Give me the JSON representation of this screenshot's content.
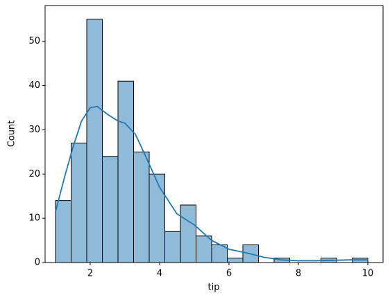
{
  "chart_data": {
    "type": "histogram",
    "bins": [
      1,
      1.45,
      1.9,
      2.35,
      2.8,
      3.25,
      3.7,
      4.15,
      4.6,
      5.05,
      5.5,
      5.95,
      6.4,
      6.85,
      7.3,
      7.75,
      8.2,
      8.65,
      9.1,
      9.55,
      10
    ],
    "values": [
      14,
      27,
      55,
      24,
      41,
      25,
      20,
      7,
      13,
      6,
      4,
      1,
      4,
      0,
      1,
      0,
      0,
      1,
      0,
      1
    ],
    "color": "#8fbbd9",
    "edgecolor": "#000000",
    "kde": {
      "color": "#1f77b4",
      "x": [
        1,
        1.25,
        1.5,
        1.75,
        2,
        2.2,
        2.5,
        2.8,
        3,
        3.3,
        3.6,
        4,
        4.5,
        5,
        5.5,
        6,
        6.5,
        7,
        7.5,
        8,
        8.5,
        9,
        9.5,
        10
      ],
      "values": [
        11.5,
        19,
        26,
        32,
        35,
        35.3,
        33.5,
        32,
        31.5,
        29,
        24,
        17,
        11,
        8.5,
        5,
        3,
        2.2,
        1.2,
        0.6,
        0.4,
        0.4,
        0.5,
        0.6,
        0.6
      ]
    },
    "xlabel": "tip",
    "ylabel": "Count",
    "xlim": [
      0.7,
      10.44
    ],
    "ylim": [
      0,
      58.1
    ],
    "xticks": [
      2,
      4,
      6,
      8,
      10
    ],
    "yticks": [
      0,
      10,
      20,
      30,
      40,
      50
    ]
  }
}
